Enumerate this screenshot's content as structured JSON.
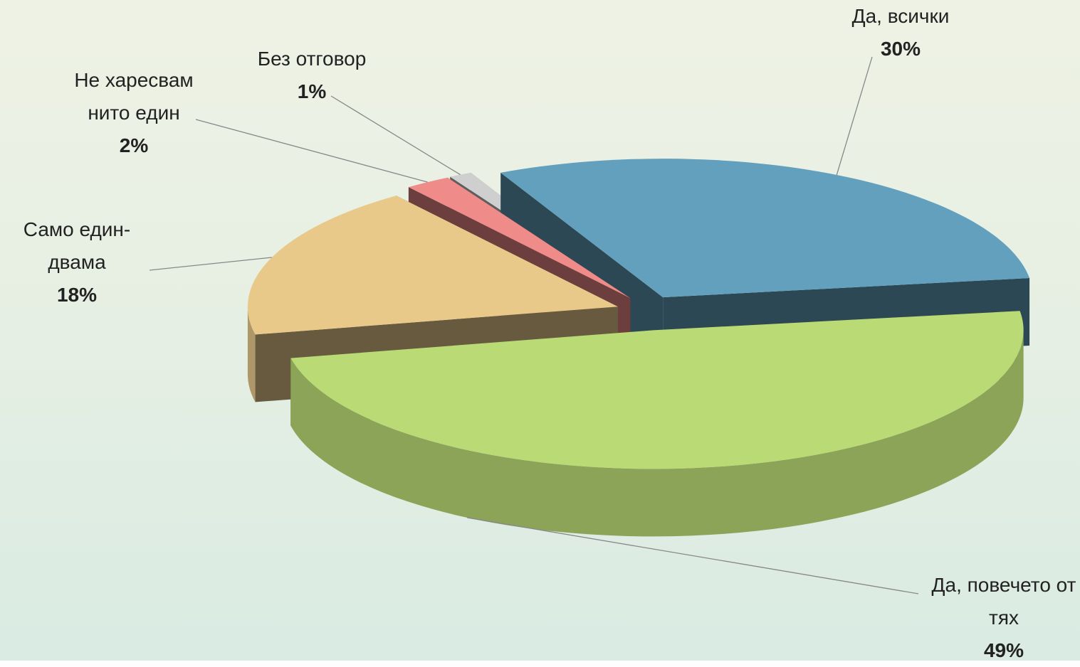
{
  "chart_data": {
    "type": "pie",
    "categories": [
      "Да, всички",
      "Да, повечето от тях",
      "Само един-двама",
      "Не харесвам нито един",
      "Без отговор"
    ],
    "values": [
      30,
      49,
      18,
      2,
      1
    ],
    "value_labels": [
      "30%",
      "49%",
      "18%",
      "2%",
      "1%"
    ],
    "colors": [
      "#62a0bd",
      "#b9da75",
      "#e8c98a",
      "#ef8c8a",
      "#cfcfcf"
    ]
  }
}
